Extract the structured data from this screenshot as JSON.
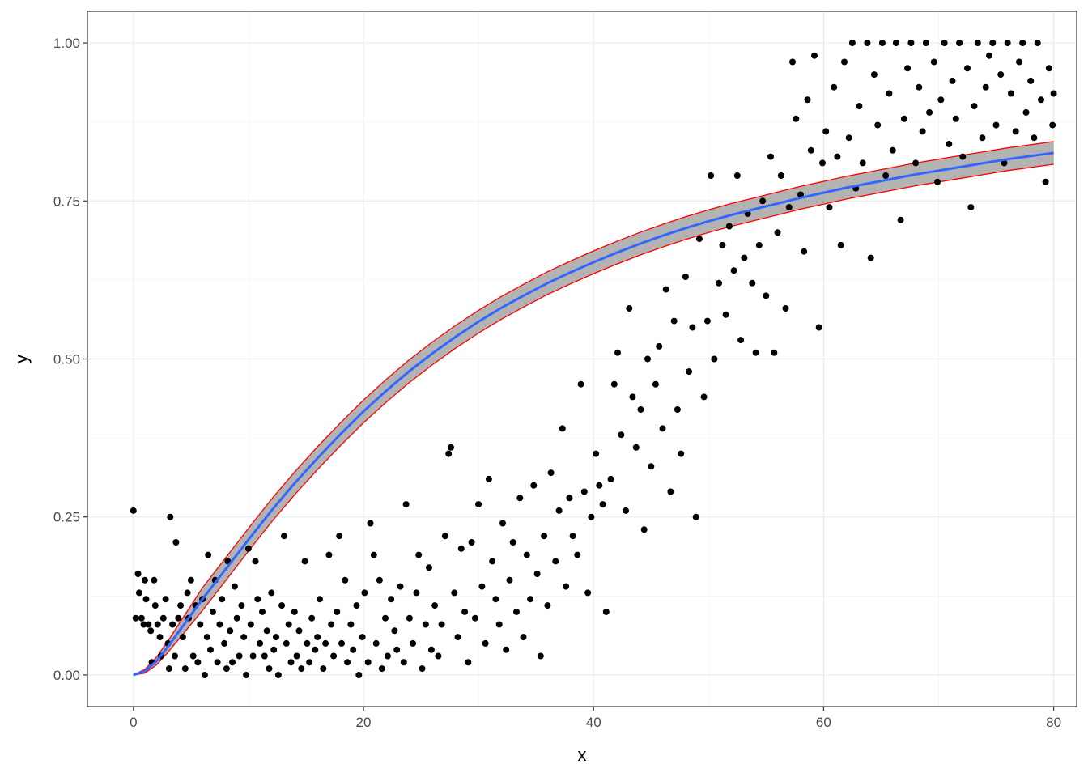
{
  "chart_data": {
    "type": "scatter",
    "title": "",
    "xlabel": "x",
    "ylabel": "y",
    "xlim": [
      -4,
      82
    ],
    "ylim": [
      -0.05,
      1.05
    ],
    "x_ticks": [
      0,
      20,
      40,
      60,
      80
    ],
    "x_tick_labels": [
      "0",
      "20",
      "40",
      "60",
      "80"
    ],
    "y_ticks": [
      0,
      0.25,
      0.5,
      0.75,
      1.0
    ],
    "y_tick_labels": [
      "0.00",
      "0.25",
      "0.50",
      "0.75",
      "1.00"
    ],
    "grid": true,
    "legend": "none",
    "colors": {
      "points": "#000000",
      "smooth_line": "#3366ff",
      "ribbon_fill": "#999999",
      "ribbon_border": "#ff0000",
      "grid_major": "#ebebeb",
      "grid_minor": "#f5f5f5",
      "panel_border": "#333333"
    },
    "points": [
      [
        0.0,
        0.26
      ],
      [
        0.2,
        0.09
      ],
      [
        0.4,
        0.16
      ],
      [
        0.5,
        0.13
      ],
      [
        0.7,
        0.09
      ],
      [
        0.9,
        0.08
      ],
      [
        1.0,
        0.15
      ],
      [
        1.1,
        0.12
      ],
      [
        1.3,
        0.08
      ],
      [
        1.5,
        0.07
      ],
      [
        1.6,
        0.02
      ],
      [
        1.8,
        0.15
      ],
      [
        1.9,
        0.11
      ],
      [
        2.1,
        0.08
      ],
      [
        2.3,
        0.06
      ],
      [
        2.4,
        0.03
      ],
      [
        2.6,
        0.09
      ],
      [
        2.8,
        0.12
      ],
      [
        3.0,
        0.05
      ],
      [
        3.1,
        0.01
      ],
      [
        3.2,
        0.25
      ],
      [
        3.4,
        0.08
      ],
      [
        3.6,
        0.03
      ],
      [
        3.7,
        0.21
      ],
      [
        3.9,
        0.09
      ],
      [
        4.1,
        0.11
      ],
      [
        4.3,
        0.06
      ],
      [
        4.5,
        0.01
      ],
      [
        4.7,
        0.13
      ],
      [
        4.8,
        0.09
      ],
      [
        5.0,
        0.15
      ],
      [
        5.2,
        0.03
      ],
      [
        5.4,
        0.11
      ],
      [
        5.6,
        0.02
      ],
      [
        5.8,
        0.08
      ],
      [
        6.0,
        0.12
      ],
      [
        6.2,
        0.0
      ],
      [
        6.4,
        0.06
      ],
      [
        6.5,
        0.19
      ],
      [
        6.7,
        0.04
      ],
      [
        6.9,
        0.1
      ],
      [
        7.1,
        0.15
      ],
      [
        7.3,
        0.02
      ],
      [
        7.5,
        0.08
      ],
      [
        7.7,
        0.12
      ],
      [
        7.9,
        0.05
      ],
      [
        8.1,
        0.01
      ],
      [
        8.2,
        0.18
      ],
      [
        8.4,
        0.07
      ],
      [
        8.6,
        0.02
      ],
      [
        8.8,
        0.14
      ],
      [
        9.0,
        0.09
      ],
      [
        9.2,
        0.03
      ],
      [
        9.4,
        0.11
      ],
      [
        9.6,
        0.06
      ],
      [
        9.8,
        0.0
      ],
      [
        10.0,
        0.2
      ],
      [
        10.2,
        0.08
      ],
      [
        10.4,
        0.03
      ],
      [
        10.6,
        0.18
      ],
      [
        10.8,
        0.12
      ],
      [
        11.0,
        0.05
      ],
      [
        11.2,
        0.1
      ],
      [
        11.4,
        0.03
      ],
      [
        11.6,
        0.07
      ],
      [
        11.8,
        0.01
      ],
      [
        12.0,
        0.13
      ],
      [
        12.2,
        0.04
      ],
      [
        12.4,
        0.06
      ],
      [
        12.6,
        0.0
      ],
      [
        12.9,
        0.11
      ],
      [
        13.1,
        0.22
      ],
      [
        13.3,
        0.05
      ],
      [
        13.5,
        0.08
      ],
      [
        13.7,
        0.02
      ],
      [
        14.0,
        0.1
      ],
      [
        14.2,
        0.03
      ],
      [
        14.4,
        0.07
      ],
      [
        14.6,
        0.01
      ],
      [
        14.9,
        0.18
      ],
      [
        15.1,
        0.05
      ],
      [
        15.3,
        0.02
      ],
      [
        15.5,
        0.09
      ],
      [
        15.8,
        0.04
      ],
      [
        16.0,
        0.06
      ],
      [
        16.2,
        0.12
      ],
      [
        16.5,
        0.01
      ],
      [
        16.7,
        0.05
      ],
      [
        17.0,
        0.19
      ],
      [
        17.2,
        0.08
      ],
      [
        17.4,
        0.03
      ],
      [
        17.7,
        0.1
      ],
      [
        17.9,
        0.22
      ],
      [
        18.1,
        0.05
      ],
      [
        18.4,
        0.15
      ],
      [
        18.6,
        0.02
      ],
      [
        18.9,
        0.08
      ],
      [
        19.1,
        0.04
      ],
      [
        19.4,
        0.11
      ],
      [
        19.6,
        0.0
      ],
      [
        19.9,
        0.06
      ],
      [
        20.1,
        0.13
      ],
      [
        20.4,
        0.02
      ],
      [
        20.6,
        0.24
      ],
      [
        20.9,
        0.19
      ],
      [
        21.1,
        0.05
      ],
      [
        21.4,
        0.15
      ],
      [
        21.6,
        0.01
      ],
      [
        21.9,
        0.09
      ],
      [
        22.1,
        0.03
      ],
      [
        22.4,
        0.12
      ],
      [
        22.7,
        0.07
      ],
      [
        22.9,
        0.04
      ],
      [
        23.2,
        0.14
      ],
      [
        23.5,
        0.02
      ],
      [
        23.7,
        0.27
      ],
      [
        24.0,
        0.09
      ],
      [
        24.3,
        0.05
      ],
      [
        24.6,
        0.13
      ],
      [
        24.8,
        0.19
      ],
      [
        25.1,
        0.01
      ],
      [
        25.4,
        0.08
      ],
      [
        25.7,
        0.17
      ],
      [
        25.9,
        0.04
      ],
      [
        26.2,
        0.11
      ],
      [
        26.5,
        0.03
      ],
      [
        26.8,
        0.08
      ],
      [
        27.1,
        0.22
      ],
      [
        27.4,
        0.35
      ],
      [
        27.6,
        0.36
      ],
      [
        27.9,
        0.13
      ],
      [
        28.2,
        0.06
      ],
      [
        28.5,
        0.2
      ],
      [
        28.8,
        0.1
      ],
      [
        29.1,
        0.02
      ],
      [
        29.4,
        0.21
      ],
      [
        29.7,
        0.09
      ],
      [
        30.0,
        0.27
      ],
      [
        30.3,
        0.14
      ],
      [
        30.6,
        0.05
      ],
      [
        30.9,
        0.31
      ],
      [
        31.2,
        0.18
      ],
      [
        31.5,
        0.12
      ],
      [
        31.8,
        0.08
      ],
      [
        32.1,
        0.24
      ],
      [
        32.4,
        0.04
      ],
      [
        32.7,
        0.15
      ],
      [
        33.0,
        0.21
      ],
      [
        33.3,
        0.1
      ],
      [
        33.6,
        0.28
      ],
      [
        33.9,
        0.06
      ],
      [
        34.2,
        0.19
      ],
      [
        34.5,
        0.12
      ],
      [
        34.8,
        0.3
      ],
      [
        35.1,
        0.16
      ],
      [
        35.4,
        0.03
      ],
      [
        35.7,
        0.22
      ],
      [
        36.0,
        0.11
      ],
      [
        36.3,
        0.32
      ],
      [
        36.7,
        0.18
      ],
      [
        37.0,
        0.26
      ],
      [
        37.3,
        0.39
      ],
      [
        37.6,
        0.14
      ],
      [
        37.9,
        0.28
      ],
      [
        38.2,
        0.22
      ],
      [
        38.6,
        0.19
      ],
      [
        38.9,
        0.46
      ],
      [
        39.2,
        0.29
      ],
      [
        39.5,
        0.13
      ],
      [
        39.8,
        0.25
      ],
      [
        40.2,
        0.35
      ],
      [
        40.5,
        0.3
      ],
      [
        40.8,
        0.27
      ],
      [
        41.1,
        0.1
      ],
      [
        41.5,
        0.31
      ],
      [
        41.8,
        0.46
      ],
      [
        42.1,
        0.51
      ],
      [
        42.4,
        0.38
      ],
      [
        42.8,
        0.26
      ],
      [
        43.1,
        0.58
      ],
      [
        43.4,
        0.44
      ],
      [
        43.7,
        0.36
      ],
      [
        44.1,
        0.42
      ],
      [
        44.4,
        0.23
      ],
      [
        44.7,
        0.5
      ],
      [
        45.0,
        0.33
      ],
      [
        45.4,
        0.46
      ],
      [
        45.7,
        0.52
      ],
      [
        46.0,
        0.39
      ],
      [
        46.3,
        0.61
      ],
      [
        46.7,
        0.29
      ],
      [
        47.0,
        0.56
      ],
      [
        47.3,
        0.42
      ],
      [
        47.6,
        0.35
      ],
      [
        48.0,
        0.63
      ],
      [
        48.3,
        0.48
      ],
      [
        48.6,
        0.55
      ],
      [
        48.9,
        0.25
      ],
      [
        49.2,
        0.69
      ],
      [
        49.6,
        0.44
      ],
      [
        49.9,
        0.56
      ],
      [
        50.2,
        0.79
      ],
      [
        50.5,
        0.5
      ],
      [
        50.9,
        0.62
      ],
      [
        51.2,
        0.68
      ],
      [
        51.5,
        0.57
      ],
      [
        51.8,
        0.71
      ],
      [
        52.2,
        0.64
      ],
      [
        52.5,
        0.79
      ],
      [
        52.8,
        0.53
      ],
      [
        53.1,
        0.66
      ],
      [
        53.4,
        0.73
      ],
      [
        53.8,
        0.62
      ],
      [
        54.1,
        0.51
      ],
      [
        54.4,
        0.68
      ],
      [
        54.7,
        0.75
      ],
      [
        55.0,
        0.6
      ],
      [
        55.4,
        0.82
      ],
      [
        55.7,
        0.51
      ],
      [
        56.0,
        0.7
      ],
      [
        56.3,
        0.79
      ],
      [
        56.7,
        0.58
      ],
      [
        57.0,
        0.74
      ],
      [
        57.3,
        0.97
      ],
      [
        57.6,
        0.88
      ],
      [
        58.0,
        0.76
      ],
      [
        58.3,
        0.67
      ],
      [
        58.6,
        0.91
      ],
      [
        58.9,
        0.83
      ],
      [
        59.2,
        0.98
      ],
      [
        59.6,
        0.55
      ],
      [
        59.9,
        0.81
      ],
      [
        60.2,
        0.86
      ],
      [
        60.5,
        0.74
      ],
      [
        60.9,
        0.93
      ],
      [
        61.2,
        0.82
      ],
      [
        61.5,
        0.68
      ],
      [
        61.8,
        0.97
      ],
      [
        62.2,
        0.85
      ],
      [
        62.5,
        1.0
      ],
      [
        62.8,
        0.77
      ],
      [
        63.1,
        0.9
      ],
      [
        63.4,
        0.81
      ],
      [
        63.8,
        1.0
      ],
      [
        64.1,
        0.66
      ],
      [
        64.4,
        0.95
      ],
      [
        64.7,
        0.87
      ],
      [
        65.1,
        1.0
      ],
      [
        65.4,
        0.79
      ],
      [
        65.7,
        0.92
      ],
      [
        66.0,
        0.83
      ],
      [
        66.3,
        1.0
      ],
      [
        66.7,
        0.72
      ],
      [
        67.0,
        0.88
      ],
      [
        67.3,
        0.96
      ],
      [
        67.6,
        1.0
      ],
      [
        68.0,
        0.81
      ],
      [
        68.3,
        0.93
      ],
      [
        68.6,
        0.86
      ],
      [
        68.9,
        1.0
      ],
      [
        69.2,
        0.89
      ],
      [
        69.6,
        0.97
      ],
      [
        69.9,
        0.78
      ],
      [
        70.2,
        0.91
      ],
      [
        70.5,
        1.0
      ],
      [
        70.9,
        0.84
      ],
      [
        71.2,
        0.94
      ],
      [
        71.5,
        0.88
      ],
      [
        71.8,
        1.0
      ],
      [
        72.1,
        0.82
      ],
      [
        72.5,
        0.96
      ],
      [
        72.8,
        0.74
      ],
      [
        73.1,
        0.9
      ],
      [
        73.4,
        1.0
      ],
      [
        73.8,
        0.85
      ],
      [
        74.1,
        0.93
      ],
      [
        74.4,
        0.98
      ],
      [
        74.7,
        1.0
      ],
      [
        75.0,
        0.87
      ],
      [
        75.4,
        0.95
      ],
      [
        75.7,
        0.81
      ],
      [
        76.0,
        1.0
      ],
      [
        76.3,
        0.92
      ],
      [
        76.7,
        0.86
      ],
      [
        77.0,
        0.97
      ],
      [
        77.3,
        1.0
      ],
      [
        77.6,
        0.89
      ],
      [
        78.0,
        0.94
      ],
      [
        78.3,
        0.85
      ],
      [
        78.6,
        1.0
      ],
      [
        78.9,
        0.91
      ],
      [
        79.3,
        0.78
      ],
      [
        79.6,
        0.96
      ],
      [
        79.9,
        0.87
      ],
      [
        80.0,
        0.92
      ]
    ],
    "smooth": {
      "x": [
        0,
        1,
        2,
        3,
        4,
        5,
        6,
        8,
        10,
        12,
        14,
        16,
        18,
        20,
        22,
        24,
        26,
        28,
        30,
        32,
        34,
        36,
        38,
        40,
        42,
        44,
        46,
        48,
        50,
        52,
        54,
        56,
        58,
        60,
        62,
        64,
        66,
        68,
        70,
        72,
        74,
        76,
        78,
        80
      ],
      "y": [
        0.0,
        0.006,
        0.022,
        0.045,
        0.07,
        0.095,
        0.12,
        0.167,
        0.214,
        0.26,
        0.303,
        0.343,
        0.381,
        0.417,
        0.45,
        0.481,
        0.509,
        0.535,
        0.559,
        0.581,
        0.601,
        0.62,
        0.637,
        0.653,
        0.668,
        0.682,
        0.695,
        0.707,
        0.718,
        0.728,
        0.737,
        0.746,
        0.755,
        0.763,
        0.771,
        0.778,
        0.785,
        0.792,
        0.798,
        0.804,
        0.81,
        0.816,
        0.821,
        0.826
      ],
      "band": 0.018
    }
  }
}
